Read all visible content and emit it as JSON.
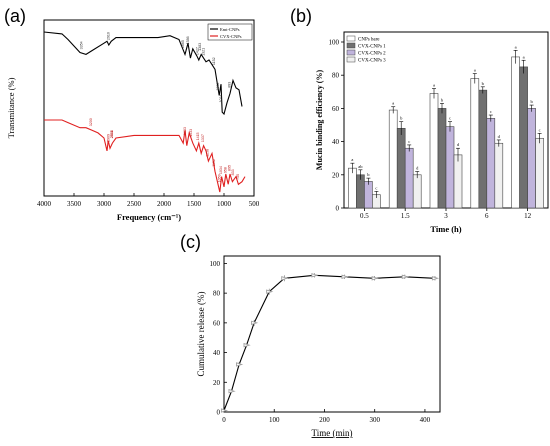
{
  "panels": [
    {
      "label": "(a)"
    },
    {
      "label": "(b)"
    },
    {
      "label": "(c)"
    }
  ],
  "chart_data": [
    {
      "type": "line",
      "title": "",
      "xlabel": "Frequency (cm⁻¹)",
      "ylabel": "Transmitance (%)",
      "xlim": [
        4000,
        500
      ],
      "x_reversed": true,
      "xticks": [
        4000,
        3500,
        3000,
        2500,
        2000,
        1500,
        1000,
        500
      ],
      "legend": "top-right",
      "series": [
        {
          "name": "Emt-CNPs",
          "color": "#000000",
          "points": [
            [
              4000,
              88
            ],
            [
              3700,
              87
            ],
            [
              3600,
              84
            ],
            [
              3400,
              77
            ],
            [
              3300,
              76
            ],
            [
              3200,
              78
            ],
            [
              3000,
              82
            ],
            [
              2950,
              83
            ],
            [
              2920,
              81
            ],
            [
              2880,
              83
            ],
            [
              2800,
              85
            ],
            [
              2400,
              85
            ],
            [
              2100,
              85
            ],
            [
              1900,
              86
            ],
            [
              1750,
              84
            ],
            [
              1650,
              76
            ],
            [
              1600,
              82
            ],
            [
              1560,
              74
            ],
            [
              1520,
              79
            ],
            [
              1450,
              75
            ],
            [
              1420,
              73
            ],
            [
              1380,
              76
            ],
            [
              1300,
              72
            ],
            [
              1250,
              73
            ],
            [
              1150,
              68
            ],
            [
              1100,
              58
            ],
            [
              1080,
              54
            ],
            [
              1050,
              60
            ],
            [
              1030,
              45
            ],
            [
              1000,
              44
            ],
            [
              950,
              50
            ],
            [
              900,
              55
            ],
            [
              850,
              62
            ],
            [
              800,
              58
            ],
            [
              750,
              57
            ],
            [
              700,
              48
            ]
          ],
          "annotations": [
            {
              "x": 3354,
              "label": "3354"
            },
            {
              "x": 2910,
              "label": "2910"
            },
            {
              "x": 1665,
              "label": "1665"
            },
            {
              "x": 1586,
              "label": "1586"
            },
            {
              "x": 1427,
              "label": "1427"
            },
            {
              "x": 1383,
              "label": "1383"
            },
            {
              "x": 1321,
              "label": "1321"
            },
            {
              "x": 1152,
              "label": "1152"
            },
            {
              "x": 1082,
              "label": "1082"
            },
            {
              "x": 1034,
              "label": "1034"
            },
            {
              "x": 893,
              "label": "893"
            }
          ]
        },
        {
          "name": "CVX-CNPs",
          "color": "#e02020",
          "points": [
            [
              4000,
              34
            ],
            [
              3700,
              34
            ],
            [
              3600,
              33
            ],
            [
              3400,
              31
            ],
            [
              3300,
              31
            ],
            [
              3200,
              30
            ],
            [
              3100,
              29
            ],
            [
              3000,
              27
            ],
            [
              2950,
              22
            ],
            [
              2930,
              26
            ],
            [
              2900,
              23
            ],
            [
              2860,
              25
            ],
            [
              2800,
              27
            ],
            [
              2500,
              28
            ],
            [
              2200,
              28
            ],
            [
              1900,
              28
            ],
            [
              1750,
              28
            ],
            [
              1680,
              25
            ],
            [
              1650,
              30
            ],
            [
              1620,
              24
            ],
            [
              1580,
              29
            ],
            [
              1520,
              25
            ],
            [
              1460,
              22
            ],
            [
              1420,
              25
            ],
            [
              1380,
              21
            ],
            [
              1340,
              24
            ],
            [
              1300,
              22
            ],
            [
              1260,
              18
            ],
            [
              1200,
              21
            ],
            [
              1150,
              14
            ],
            [
              1100,
              9
            ],
            [
              1070,
              6
            ],
            [
              1040,
              12
            ],
            [
              1000,
              8
            ],
            [
              970,
              13
            ],
            [
              930,
              9
            ],
            [
              900,
              13
            ],
            [
              860,
              10
            ],
            [
              800,
              12
            ],
            [
              760,
              9
            ],
            [
              700,
              10
            ],
            [
              650,
              12
            ]
          ],
          "annotations": [
            {
              "x": 3200,
              "label": "3200"
            },
            {
              "x": 2909,
              "label": "2909"
            },
            {
              "x": 2851,
              "label": "2851"
            },
            {
              "x": 2848,
              "label": "2848"
            },
            {
              "x": 1633,
              "label": "1633"
            },
            {
              "x": 1533,
              "label": "1533"
            },
            {
              "x": 1415,
              "label": "1415"
            },
            {
              "x": 1337,
              "label": "1337"
            },
            {
              "x": 1258,
              "label": "1258"
            },
            {
              "x": 1152,
              "label": "1152"
            },
            {
              "x": 1059,
              "label": "1059"
            },
            {
              "x": 1034,
              "label": "1034"
            },
            {
              "x": 958,
              "label": "958"
            },
            {
              "x": 895,
              "label": "895"
            },
            {
              "x": 833,
              "label": "833"
            },
            {
              "x": 750,
              "label": "750"
            }
          ]
        }
      ]
    },
    {
      "type": "bar",
      "title": "",
      "xlabel": "Time (h)",
      "ylabel": "Mucin binding efficiency (%)",
      "ylim": [
        0,
        100
      ],
      "yticks": [
        0,
        20,
        40,
        60,
        80,
        100
      ],
      "categories": [
        "0.5",
        "1.5",
        "3",
        "6",
        "12"
      ],
      "legend": "top-left",
      "series": [
        {
          "name": "CNPs bare",
          "color": "#ffffff",
          "values": [
            24,
            59,
            69,
            78,
            91
          ],
          "errors": [
            3,
            2,
            3,
            3,
            4
          ],
          "letters": [
            "a",
            "a",
            "a",
            "a",
            "a"
          ]
        },
        {
          "name": "CVX-CNPs 1",
          "color": "#707070",
          "values": [
            20,
            48,
            60,
            71,
            85
          ],
          "errors": [
            3,
            4,
            3,
            2,
            4
          ],
          "letters": [
            "ab",
            "b",
            "b",
            "b",
            "a"
          ]
        },
        {
          "name": "CVX-CNPs 2",
          "color": "#c0b4dc",
          "values": [
            16,
            36,
            49,
            54,
            60
          ],
          "errors": [
            2,
            2,
            3,
            2,
            2
          ],
          "letters": [
            "b",
            "c",
            "c",
            "c",
            "b"
          ]
        },
        {
          "name": "CVX-CNPs 3",
          "color": "#f0f0f0",
          "values": [
            8,
            20,
            32,
            39,
            42
          ],
          "errors": [
            2,
            2,
            4,
            2,
            3
          ],
          "letters": [
            "c",
            "d",
            "d",
            "d",
            "c"
          ]
        }
      ]
    },
    {
      "type": "line",
      "title": "",
      "xlabel": "Time (min)",
      "ylabel": "Cumulative release (%)",
      "xlim": [
        0,
        430
      ],
      "ylim": [
        0,
        105
      ],
      "xticks": [
        0,
        100,
        200,
        300,
        400
      ],
      "yticks": [
        0,
        20,
        40,
        60,
        80,
        100
      ],
      "series": [
        {
          "color": "#a0a0a0",
          "x": [
            0,
            15,
            30,
            45,
            60,
            90,
            120,
            180,
            240,
            300,
            360,
            420
          ],
          "y": [
            1,
            14,
            32,
            45,
            60,
            81,
            90,
            92,
            91,
            90,
            91,
            90
          ],
          "errors": [
            0.5,
            1,
            1.5,
            1.5,
            2,
            2,
            2,
            1.5,
            1.5,
            1.5,
            1.5,
            1.5
          ]
        }
      ]
    }
  ]
}
